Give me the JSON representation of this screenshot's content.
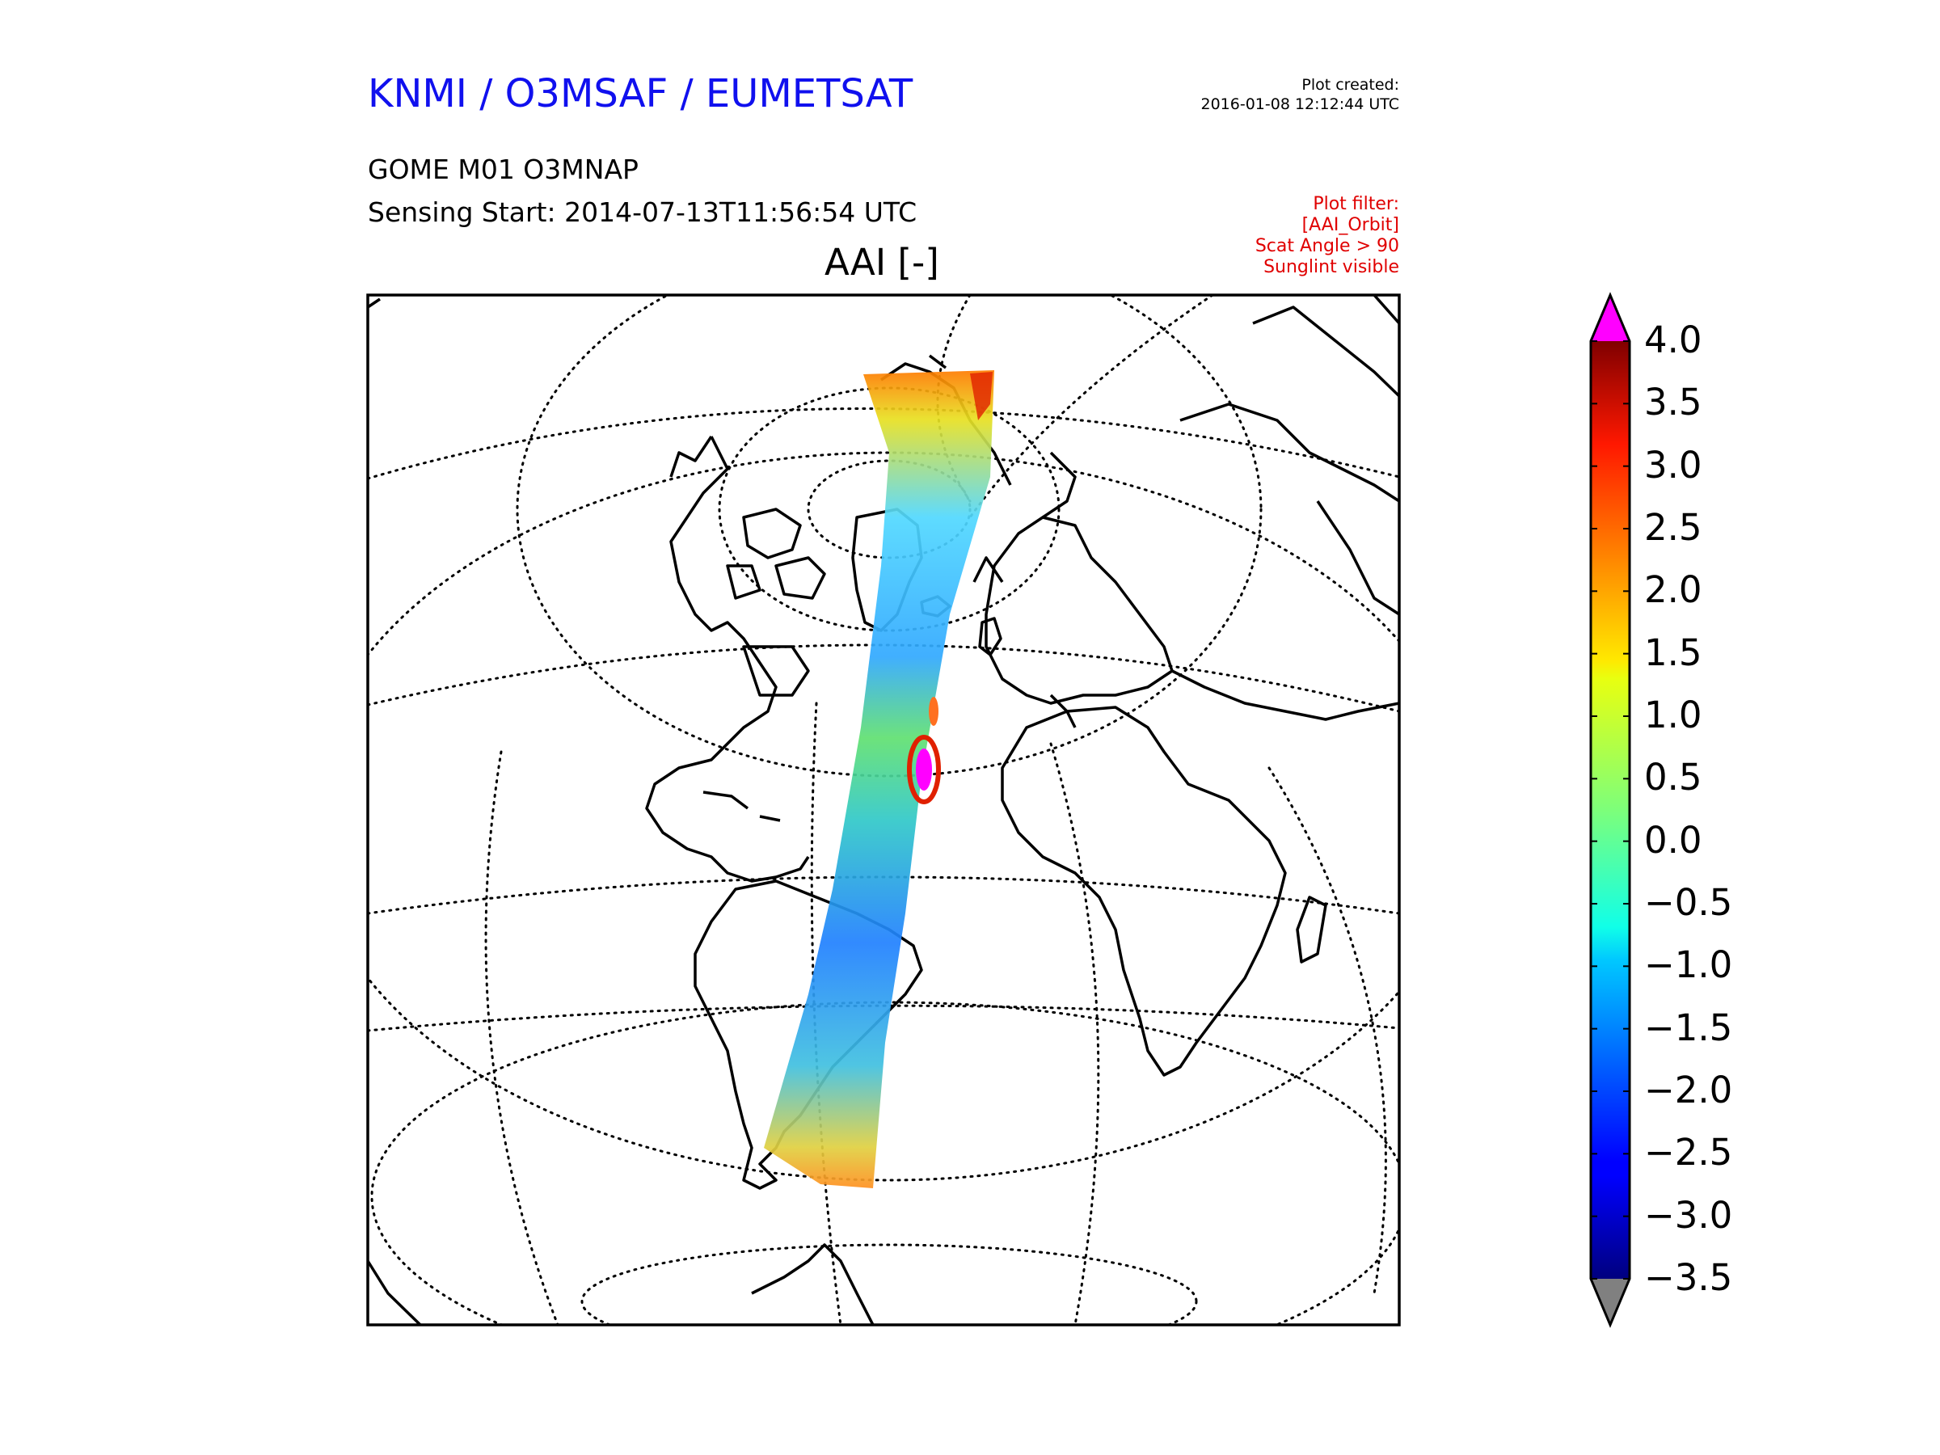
{
  "header": {
    "organization": "KNMI / O3MSAF / EUMETSAT",
    "created_label": "Plot created:",
    "created_time": "2016-01-08 12:12:44 UTC",
    "product": "GOME M01 O3MNAP",
    "sensing": "Sensing Start: 2014-07-13T11:56:54 UTC",
    "filter_label": "Plot filter:",
    "filter_lines": [
      "[AAI_Orbit]",
      "Scat Angle > 90",
      "Sunglint visible"
    ]
  },
  "map": {
    "title": "AAI [-]",
    "projection": "orthographic",
    "graticule": "dotted",
    "coastlines": "black"
  },
  "colorbar": {
    "min": -3.5,
    "max": 4.0,
    "under_color": "#808080",
    "over_color": "#ff00ff",
    "colormap": "jet",
    "ticks": [
      "4.0",
      "3.5",
      "3.0",
      "2.5",
      "2.0",
      "1.5",
      "1.0",
      "0.5",
      "0.0",
      "−0.5",
      "−1.0",
      "−1.5",
      "−2.0",
      "−2.5",
      "−3.0",
      "−3.5"
    ]
  },
  "colors": {
    "organization": "#1010ee",
    "filter": "#e00000"
  }
}
